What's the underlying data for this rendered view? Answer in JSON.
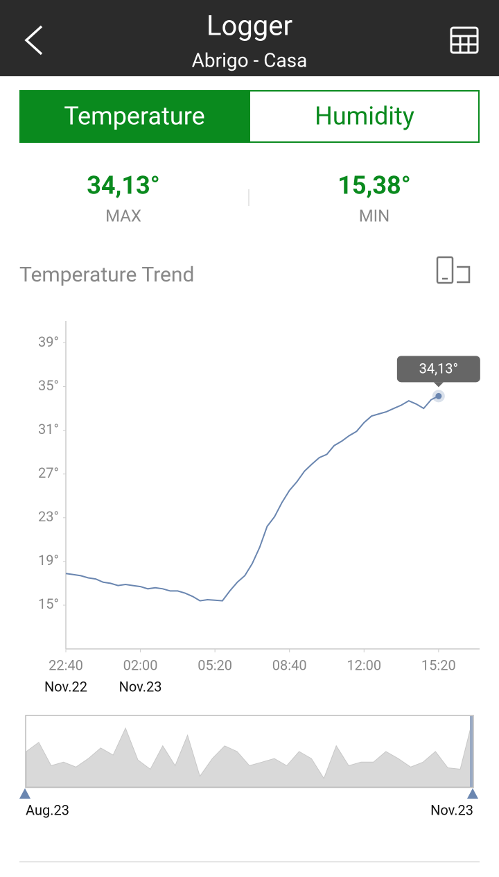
{
  "header": {
    "title": "Logger",
    "subtitle": "Abrigo - Casa"
  },
  "tabs": [
    "Temperature",
    "Humidity"
  ],
  "stats": [
    {
      "value": "34,13°",
      "label": "MAX"
    },
    {
      "value": "15,38°",
      "label": "MIN"
    }
  ],
  "trend_title": "Temperature Trend",
  "chart_data": {
    "type": "line",
    "x": [
      "22:40",
      "23:00",
      "23:20",
      "23:40",
      "00:00",
      "00:20",
      "00:40",
      "01:00",
      "01:20",
      "01:40",
      "02:00",
      "02:20",
      "02:40",
      "03:00",
      "03:20",
      "03:40",
      "04:00",
      "04:20",
      "04:40",
      "05:00",
      "05:20",
      "05:40",
      "06:00",
      "06:20",
      "06:40",
      "07:00",
      "07:20",
      "07:40",
      "08:00",
      "08:20",
      "08:40",
      "09:00",
      "09:20",
      "09:40",
      "10:00",
      "10:20",
      "10:40",
      "11:00",
      "11:20",
      "11:40",
      "12:00",
      "12:20",
      "12:40",
      "13:00",
      "13:20",
      "13:40",
      "14:00",
      "14:20",
      "14:40",
      "15:00",
      "15:20"
    ],
    "values": [
      17.9,
      17.8,
      17.7,
      17.5,
      17.4,
      17.1,
      17.0,
      16.8,
      16.9,
      16.8,
      16.7,
      16.5,
      16.6,
      16.5,
      16.3,
      16.3,
      16.1,
      15.8,
      15.4,
      15.5,
      15.45,
      15.4,
      16.3,
      17.1,
      17.7,
      18.8,
      20.3,
      22.2,
      23.1,
      24.4,
      25.5,
      26.3,
      27.25,
      27.9,
      28.5,
      28.8,
      29.6,
      30.0,
      30.5,
      30.9,
      31.7,
      32.3,
      32.5,
      32.7,
      33.0,
      33.3,
      33.7,
      33.4,
      33.0,
      33.8,
      34.13
    ],
    "color": "#6a86b0",
    "xlim": [
      "22:40",
      "17:10"
    ],
    "xticks": [
      "22:40",
      "02:00",
      "05:20",
      "08:40",
      "12:00",
      "15:20"
    ],
    "xtick_dates": [
      "Nov.22",
      "Nov.23"
    ],
    "ylim": [
      11,
      41
    ],
    "yticks": [
      {
        "value": 15,
        "label": "15°"
      },
      {
        "value": 19,
        "label": "19°"
      },
      {
        "value": 23,
        "label": "23°"
      },
      {
        "value": 27,
        "label": "27°"
      },
      {
        "value": 31,
        "label": "31°"
      },
      {
        "value": 35,
        "label": "35°"
      },
      {
        "value": 39,
        "label": "39°"
      }
    ],
    "tooltip": "34,13°",
    "grid": false
  },
  "navigator": {
    "start": "Aug.23",
    "end": "Nov.23",
    "ylim": [
      0,
      100
    ],
    "values": [
      50,
      63,
      30,
      35,
      28,
      40,
      55,
      45,
      83,
      38,
      25,
      58,
      30,
      73,
      15,
      40,
      58,
      50,
      30,
      35,
      40,
      30,
      50,
      40,
      12,
      58,
      30,
      35,
      35,
      50,
      40,
      28,
      35,
      50,
      27,
      25,
      95
    ]
  }
}
